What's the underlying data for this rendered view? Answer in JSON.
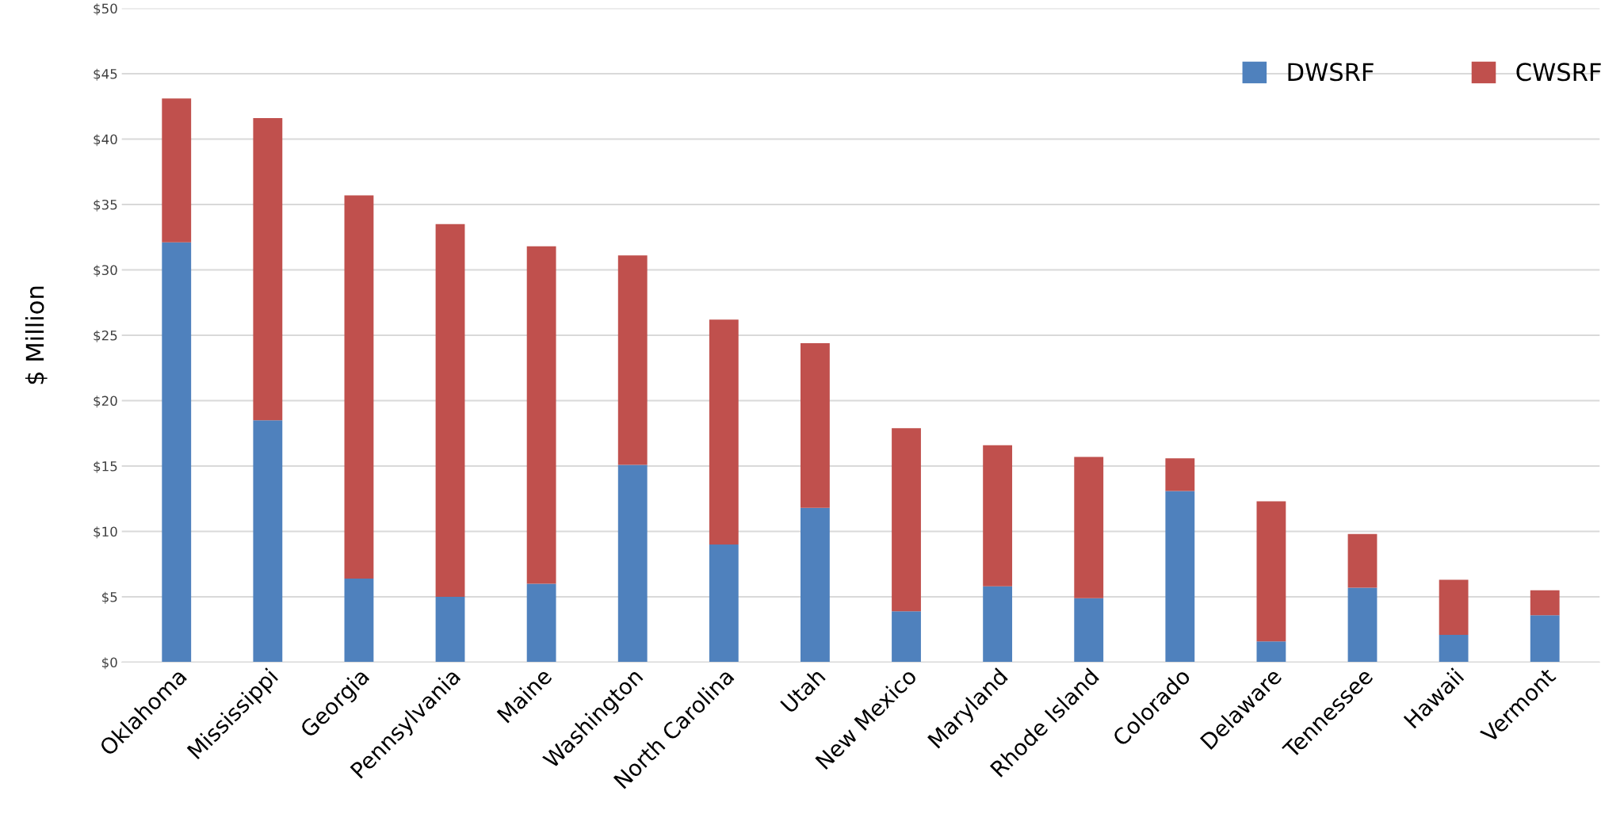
{
  "chart_data": {
    "type": "bar",
    "stacked": true,
    "ylabel": "$ Million",
    "categories": [
      "Oklahoma",
      "Mississippi",
      "Georgia",
      "Pennsylvania",
      "Maine",
      "Washington",
      "North Carolina",
      "Utah",
      "New Mexico",
      "Maryland",
      "Rhode Island",
      "Colorado",
      "Delaware",
      "Tennessee",
      "Hawaii",
      "Vermont"
    ],
    "series": [
      {
        "name": "DWSRF",
        "color": "#4f81bd",
        "values": [
          32.1,
          18.5,
          6.4,
          5.0,
          6.0,
          15.1,
          9.0,
          11.8,
          3.9,
          5.8,
          4.9,
          13.1,
          1.6,
          5.7,
          2.1,
          3.6
        ]
      },
      {
        "name": "CWSRF",
        "color": "#c0504d",
        "values": [
          11.0,
          23.1,
          29.3,
          28.5,
          25.8,
          16.0,
          17.2,
          12.6,
          14.0,
          10.8,
          10.8,
          2.5,
          10.7,
          4.1,
          4.2,
          1.9
        ]
      }
    ],
    "ylim": [
      0,
      50
    ],
    "yticks": [
      {
        "value": 0,
        "label": "$0"
      },
      {
        "value": 5,
        "label": "$5"
      },
      {
        "value": 10,
        "label": "$10"
      },
      {
        "value": 15,
        "label": "$15"
      },
      {
        "value": 20,
        "label": "$20"
      },
      {
        "value": 25,
        "label": "$25"
      },
      {
        "value": 30,
        "label": "$30"
      },
      {
        "value": 35,
        "label": "$35"
      },
      {
        "value": 40,
        "label": "$40"
      },
      {
        "value": 45,
        "label": "$45"
      },
      {
        "value": 50,
        "label": "$50"
      }
    ],
    "grid": "y",
    "legend": "top right"
  }
}
